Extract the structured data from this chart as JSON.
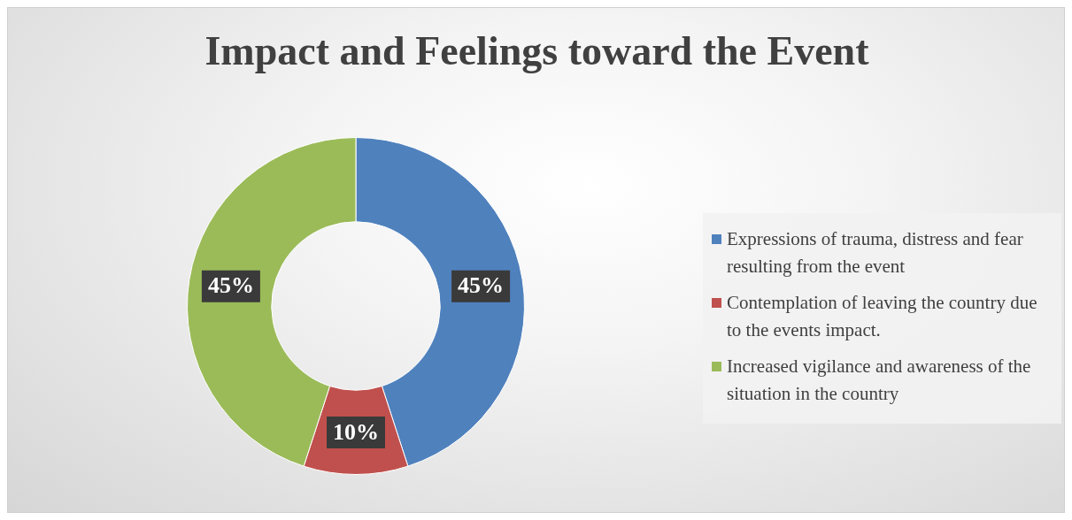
{
  "chart_data": {
    "type": "donut",
    "title": "Impact and Feelings toward the Event",
    "categories": [
      "Expressions of trauma, distress and fear resulting from the event",
      "Contemplation of leaving the country due to the events impact.",
      "Increased vigilance and awareness of the situation in the country"
    ],
    "values": [
      45,
      10,
      45
    ],
    "colors": [
      "#4f81bd",
      "#c0504d",
      "#9bbb59"
    ],
    "value_labels": [
      "45%",
      "10%",
      "45%"
    ],
    "legend": "right"
  }
}
